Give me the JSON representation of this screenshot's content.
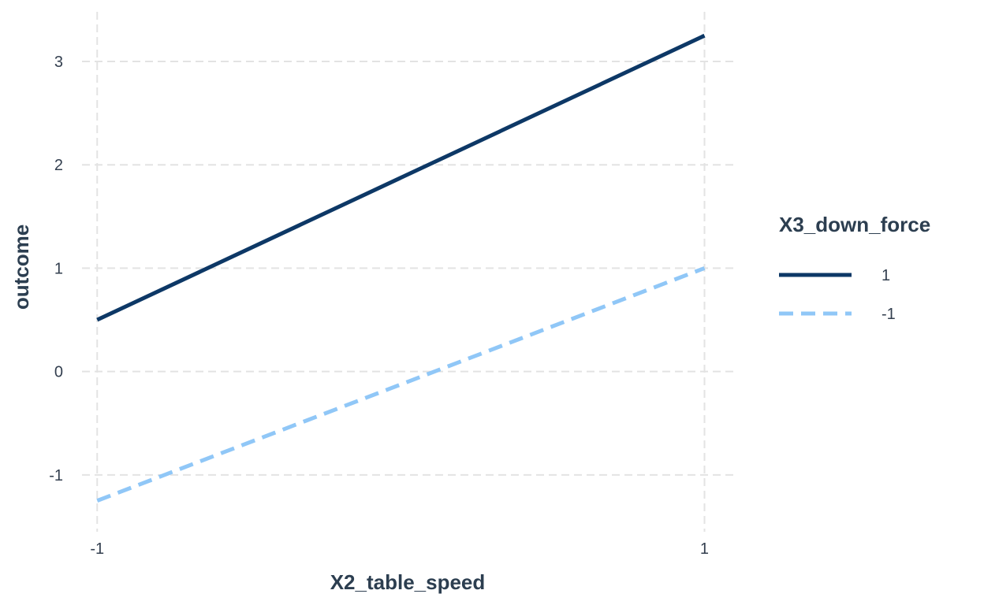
{
  "chart_data": {
    "type": "line",
    "xlabel": "X2_table_speed",
    "ylabel": "outcome",
    "x": [
      -1,
      1
    ],
    "x_ticks": [
      -1,
      1
    ],
    "y_ticks": [
      -1,
      0,
      1,
      2,
      3
    ],
    "xlim": [
      -1.05,
      1.1
    ],
    "ylim": [
      -1.55,
      3.48
    ],
    "grid": true,
    "legend": {
      "title": "X3_down_force",
      "placement": "right"
    },
    "series": [
      {
        "name": "1",
        "values": [
          0.5,
          3.25
        ],
        "color": "#0d3866",
        "dash": "solid"
      },
      {
        "name": "-1",
        "values": [
          -1.25,
          1.0
        ],
        "color": "#90c7f7",
        "dash": "dashed"
      }
    ]
  }
}
